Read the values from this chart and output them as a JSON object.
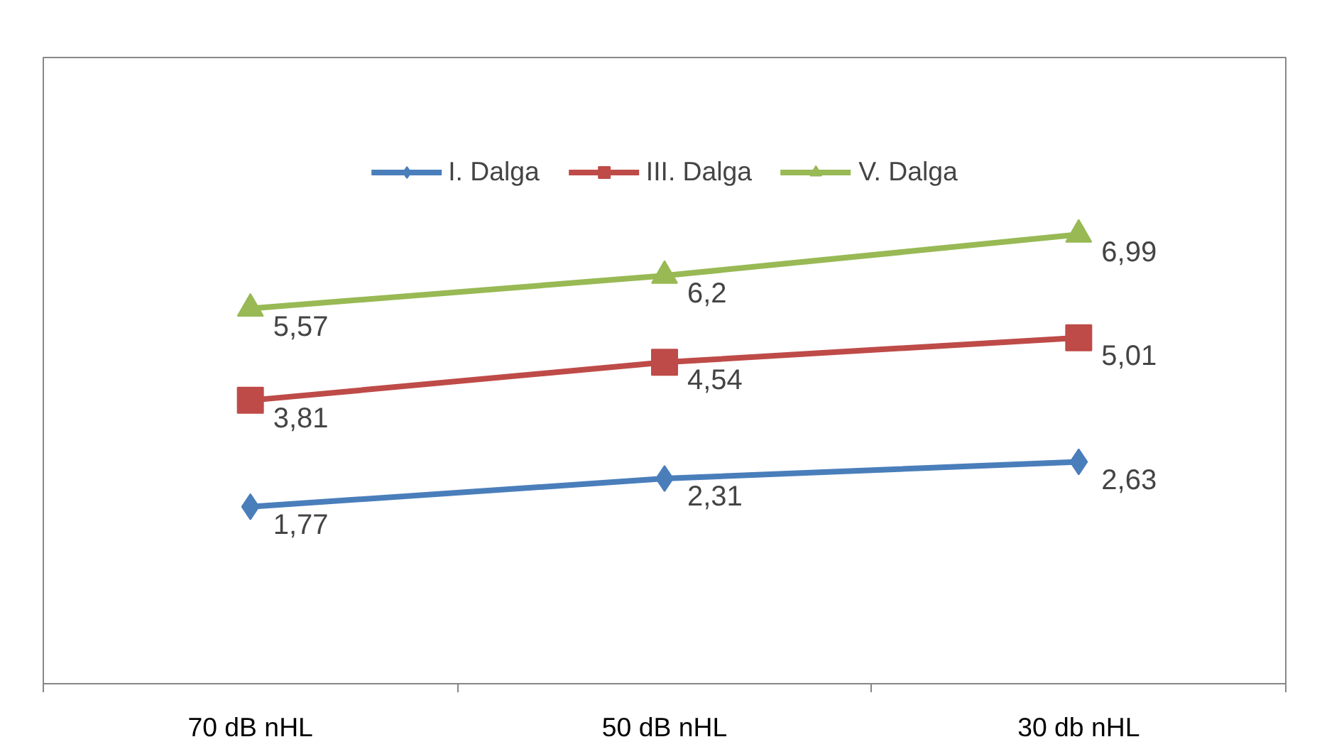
{
  "chart_data": {
    "type": "line",
    "categories": [
      "70 dB nHL",
      "50 dB nHL",
      "30 db nHL"
    ],
    "series": [
      {
        "name": "I. Dalga",
        "color": "#4a7ebb",
        "marker": "diamond",
        "values": [
          1.77,
          2.31,
          2.63
        ],
        "value_labels": [
          "1,77",
          "2,31",
          "2,63"
        ]
      },
      {
        "name": "III. Dalga",
        "color": "#be4b48",
        "marker": "square",
        "values": [
          3.81,
          4.54,
          5.01
        ],
        "value_labels": [
          "3,81",
          "4,54",
          "5,01"
        ]
      },
      {
        "name": "V. Dalga",
        "color": "#98b954",
        "marker": "triangle",
        "values": [
          5.57,
          6.2,
          6.99
        ],
        "value_labels": [
          "5,57",
          "6,2",
          "6,99"
        ]
      }
    ],
    "legend": "top",
    "tick_labels": "x"
  }
}
